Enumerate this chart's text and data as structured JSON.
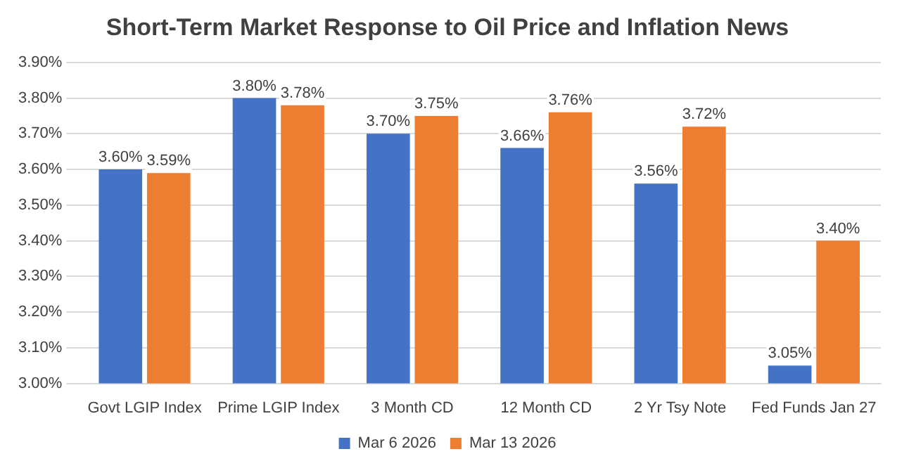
{
  "chart_data": {
    "type": "bar",
    "title": "Short-Term Market Response to Oil Price and Inflation News",
    "categories": [
      "Govt LGIP Index",
      "Prime LGIP Index",
      "3 Month CD",
      "12 Month CD",
      "2 Yr Tsy Note",
      "Fed Funds Jan 27"
    ],
    "series": [
      {
        "name": "Mar 6 2026",
        "color": "#4472c4",
        "values": [
          3.6,
          3.8,
          3.7,
          3.66,
          3.56,
          3.05
        ],
        "value_labels": [
          "3.60%",
          "3.80%",
          "3.70%",
          "3.66%",
          "3.56%",
          "3.05%"
        ]
      },
      {
        "name": "Mar 13 2026",
        "color": "#ed7d31",
        "values": [
          3.59,
          3.78,
          3.75,
          3.76,
          3.72,
          3.4
        ],
        "value_labels": [
          "3.59%",
          "3.78%",
          "3.75%",
          "3.76%",
          "3.72%",
          "3.40%"
        ]
      }
    ],
    "ylim": [
      3.0,
      3.9
    ],
    "yticks": [
      {
        "value": 3.0,
        "label": "3.00%"
      },
      {
        "value": 3.1,
        "label": "3.10%"
      },
      {
        "value": 3.2,
        "label": "3.20%"
      },
      {
        "value": 3.3,
        "label": "3.30%"
      },
      {
        "value": 3.4,
        "label": "3.40%"
      },
      {
        "value": 3.5,
        "label": "3.50%"
      },
      {
        "value": 3.6,
        "label": "3.60%"
      },
      {
        "value": 3.7,
        "label": "3.70%"
      },
      {
        "value": 3.8,
        "label": "3.80%"
      },
      {
        "value": 3.9,
        "label": "3.90%"
      }
    ],
    "grid": "y",
    "legend": "bottom"
  }
}
